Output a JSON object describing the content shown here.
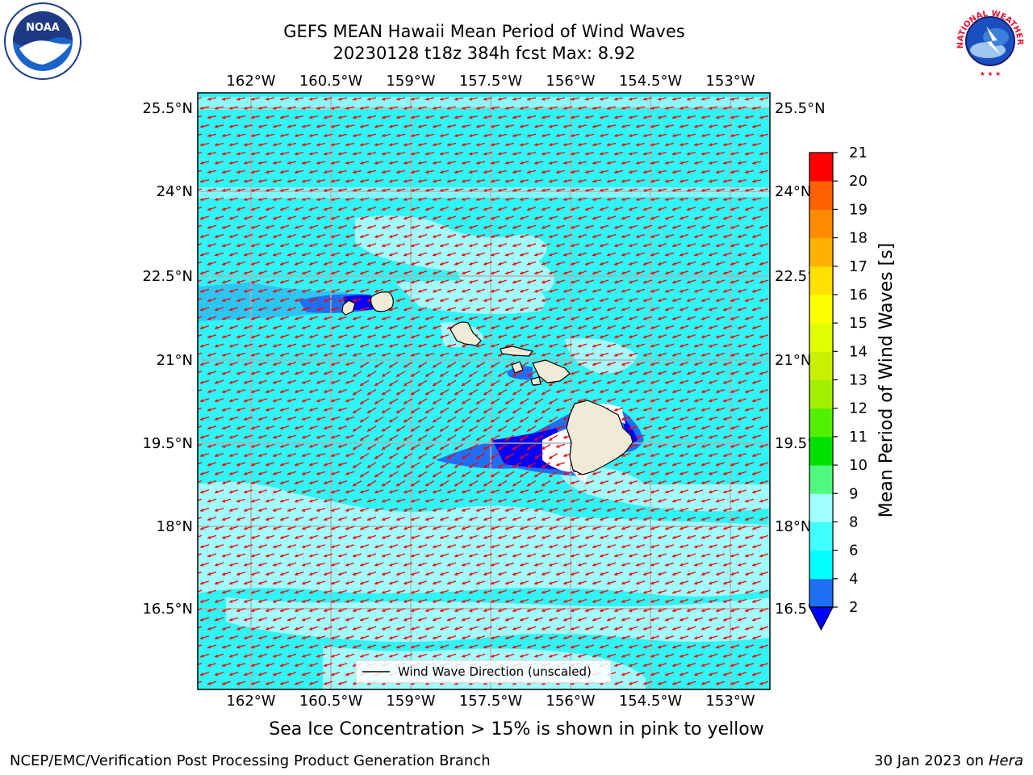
{
  "title": {
    "line1": "GEFS MEAN Hawaii Mean Period of Wind Waves",
    "line2": "20230128 t18z 384h fcst   Max: 8.92"
  },
  "map": {
    "lon_ticks": [
      "162°W",
      "160.5°W",
      "159°W",
      "157.5°W",
      "156°W",
      "154.5°W",
      "153°W"
    ],
    "lat_ticks": [
      "25.5°N",
      "24°N",
      "22.5°N",
      "21°N",
      "19.5°N",
      "18°N",
      "16.5°N"
    ],
    "legend_label": "Wind Wave Direction (unscaled)",
    "arrow_color": "#ff0000",
    "ocean_color": "#30f5f5",
    "land_color": "#efebd7"
  },
  "colorbar": {
    "label": "Mean Period of Wind Waves [s]",
    "ticks": [
      "2",
      "4",
      "6",
      "8",
      "9",
      "10",
      "11",
      "12",
      "13",
      "14",
      "15",
      "16",
      "17",
      "18",
      "19",
      "20",
      "21"
    ],
    "colors": [
      "#1f6ff5",
      "#00ffff",
      "#40ffff",
      "#a0ffff",
      "#50f880",
      "#00e000",
      "#50f000",
      "#a0f000",
      "#c8f000",
      "#e0ff00",
      "#ffff00",
      "#ffe000",
      "#ffb000",
      "#ff8c00",
      "#ff6000",
      "#ff3000",
      "#ff0000"
    ],
    "under_color": "#0000ff"
  },
  "caption": "Sea Ice Concentration > 15% is shown in pink to yellow",
  "footer": {
    "left": "NCEP/EMC/Verification Post Processing Product Generation Branch",
    "right_date": "30 Jan 2023 on ",
    "right_host": "Hera"
  },
  "logos": {
    "noaa": "NOAA",
    "nws": "NATIONAL WEATHER SERVICE"
  }
}
